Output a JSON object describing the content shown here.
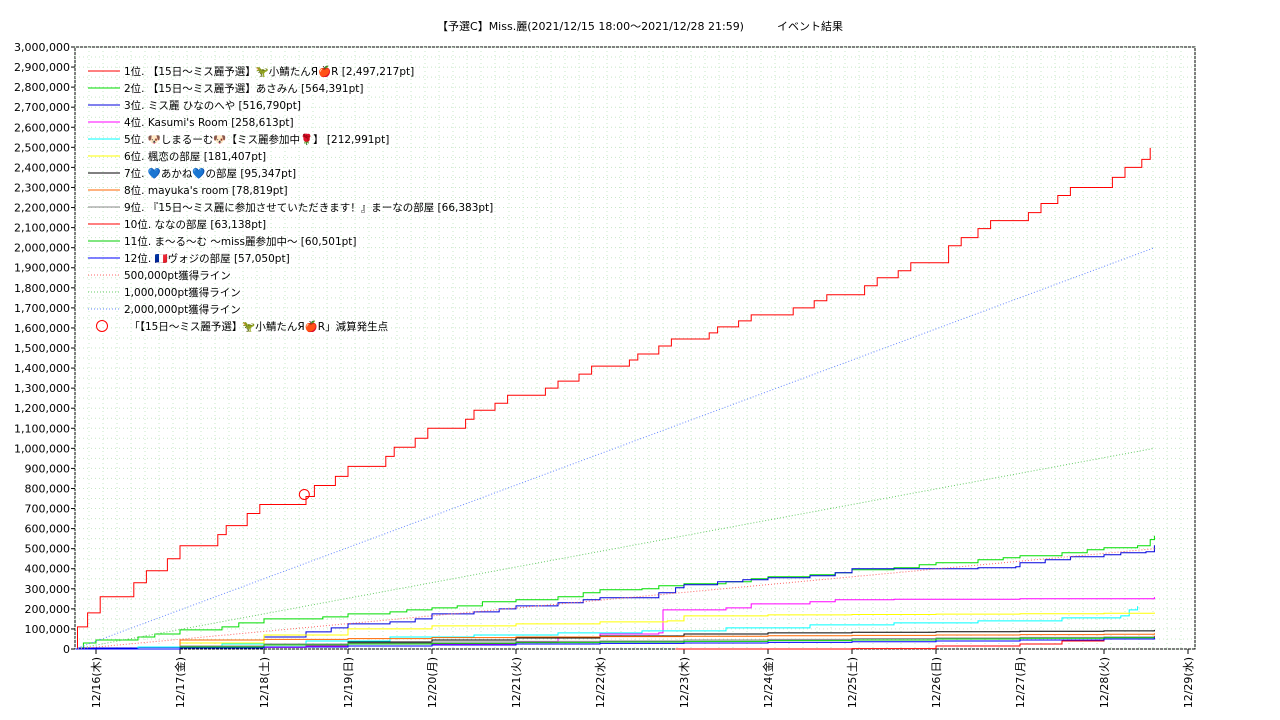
{
  "chart_data": {
    "type": "line",
    "title": "【予選C】Miss.麗(2021/12/15 18:00～2021/12/28 21:59)　　　イベント結果",
    "xlabel": "",
    "ylabel": "",
    "xlim": [
      0,
      13
    ],
    "ylim": [
      0,
      3000000
    ],
    "grid": true,
    "legend_position": "top-left",
    "y_ticks": [
      "0",
      "100,000",
      "200,000",
      "300,000",
      "400,000",
      "500,000",
      "600,000",
      "700,000",
      "800,000",
      "900,000",
      "1,000,000",
      "1,100,000",
      "1,200,000",
      "1,300,000",
      "1,400,000",
      "1,500,000",
      "1,600,000",
      "1,700,000",
      "1,800,000",
      "1,900,000",
      "2,000,000",
      "2,100,000",
      "2,200,000",
      "2,300,000",
      "2,400,000",
      "2,500,000",
      "2,600,000",
      "2,700,000",
      "2,800,000",
      "2,900,000",
      "3,000,000"
    ],
    "x_ticks": [
      "12/16(木)",
      "12/17(金)",
      "12/18(土)",
      "12/19(日)",
      "12/20(月)",
      "12/21(火)",
      "12/22(水)",
      "12/23(木)",
      "12/24(金)",
      "12/25(土)",
      "12/26(日)",
      "12/27(月)",
      "12/28(火)",
      "12/29(水)"
    ],
    "series": [
      {
        "name": "1位. 【15日～ミス麗予選】🦖小鯖たんЯ🍎R [2,497,217pt]",
        "color": "#ff0000",
        "style": "solid",
        "points": [
          [
            -0.25,
            0
          ],
          [
            -0.22,
            110000
          ],
          [
            -0.1,
            180000
          ],
          [
            0.05,
            260000
          ],
          [
            0.45,
            330000
          ],
          [
            0.6,
            390000
          ],
          [
            0.85,
            450000
          ],
          [
            1.0,
            515000
          ],
          [
            1.45,
            570000
          ],
          [
            1.55,
            615000
          ],
          [
            1.8,
            675000
          ],
          [
            1.95,
            720000
          ],
          [
            2.45,
            720000
          ],
          [
            2.5,
            760000
          ],
          [
            2.6,
            815000
          ],
          [
            2.85,
            860000
          ],
          [
            3.0,
            910000
          ],
          [
            3.45,
            960000
          ],
          [
            3.55,
            1005000
          ],
          [
            3.8,
            1050000
          ],
          [
            3.95,
            1100000
          ],
          [
            4.4,
            1145000
          ],
          [
            4.5,
            1190000
          ],
          [
            4.75,
            1225000
          ],
          [
            4.9,
            1265000
          ],
          [
            5.35,
            1300000
          ],
          [
            5.5,
            1335000
          ],
          [
            5.75,
            1370000
          ],
          [
            5.9,
            1410000
          ],
          [
            6.35,
            1440000
          ],
          [
            6.45,
            1470000
          ],
          [
            6.7,
            1510000
          ],
          [
            6.85,
            1545000
          ],
          [
            7.3,
            1575000
          ],
          [
            7.4,
            1605000
          ],
          [
            7.65,
            1635000
          ],
          [
            7.8,
            1665000
          ],
          [
            8.3,
            1700000
          ],
          [
            8.55,
            1735000
          ],
          [
            8.7,
            1765000
          ],
          [
            9.15,
            1810000
          ],
          [
            9.3,
            1850000
          ],
          [
            9.55,
            1885000
          ],
          [
            9.7,
            1925000
          ],
          [
            10.15,
            2010000
          ],
          [
            10.3,
            2050000
          ],
          [
            10.5,
            2095000
          ],
          [
            10.65,
            2135000
          ],
          [
            11.1,
            2175000
          ],
          [
            11.25,
            2220000
          ],
          [
            11.45,
            2260000
          ],
          [
            11.6,
            2300000
          ],
          [
            12.1,
            2350000
          ],
          [
            12.25,
            2400000
          ],
          [
            12.45,
            2440000
          ],
          [
            12.55,
            2497217
          ]
        ]
      },
      {
        "name": "2位. 【15日～ミス麗予選】あさみん [564,391pt]",
        "color": "#00dd00",
        "style": "solid",
        "points": [
          [
            -0.25,
            0
          ],
          [
            -0.15,
            30000
          ],
          [
            0.0,
            45000
          ],
          [
            0.5,
            60000
          ],
          [
            0.7,
            75000
          ],
          [
            1.0,
            95000
          ],
          [
            1.5,
            110000
          ],
          [
            1.7,
            130000
          ],
          [
            2.0,
            150000
          ],
          [
            2.6,
            150000
          ],
          [
            2.7,
            160000
          ],
          [
            3.0,
            175000
          ],
          [
            3.5,
            185000
          ],
          [
            3.7,
            195000
          ],
          [
            4.0,
            205000
          ],
          [
            4.3,
            215000
          ],
          [
            4.6,
            235000
          ],
          [
            5.0,
            245000
          ],
          [
            5.5,
            260000
          ],
          [
            5.8,
            280000
          ],
          [
            6.0,
            295000
          ],
          [
            6.5,
            300000
          ],
          [
            6.7,
            315000
          ],
          [
            7.0,
            325000
          ],
          [
            7.5,
            335000
          ],
          [
            7.8,
            350000
          ],
          [
            8.0,
            360000
          ],
          [
            8.5,
            370000
          ],
          [
            8.8,
            380000
          ],
          [
            9.0,
            395000
          ],
          [
            9.5,
            405000
          ],
          [
            9.8,
            420000
          ],
          [
            10.0,
            430000
          ],
          [
            10.5,
            445000
          ],
          [
            10.8,
            455000
          ],
          [
            11.0,
            465000
          ],
          [
            11.5,
            480000
          ],
          [
            11.8,
            495000
          ],
          [
            12.0,
            505000
          ],
          [
            12.4,
            515000
          ],
          [
            12.55,
            545000
          ],
          [
            12.6,
            564391
          ]
        ]
      },
      {
        "name": "3位. ミス麗 ひなのへや [516,790pt]",
        "color": "#0000dd",
        "style": "solid",
        "points": [
          [
            -0.25,
            0
          ],
          [
            -0.2,
            5000
          ],
          [
            0.5,
            8000
          ],
          [
            1.0,
            15000
          ],
          [
            1.5,
            30000
          ],
          [
            2.0,
            60000
          ],
          [
            2.5,
            85000
          ],
          [
            2.8,
            105000
          ],
          [
            3.0,
            125000
          ],
          [
            3.5,
            135000
          ],
          [
            3.8,
            150000
          ],
          [
            4.0,
            175000
          ],
          [
            4.5,
            185000
          ],
          [
            4.8,
            200000
          ],
          [
            5.0,
            215000
          ],
          [
            5.5,
            230000
          ],
          [
            5.8,
            245000
          ],
          [
            6.0,
            255000
          ],
          [
            6.65,
            255000
          ],
          [
            6.7,
            280000
          ],
          [
            6.9,
            305000
          ],
          [
            7.0,
            320000
          ],
          [
            7.4,
            335000
          ],
          [
            7.7,
            345000
          ],
          [
            8.0,
            355000
          ],
          [
            8.5,
            365000
          ],
          [
            8.8,
            380000
          ],
          [
            9.0,
            400000
          ],
          [
            10.0,
            400000
          ],
          [
            10.5,
            405000
          ],
          [
            10.95,
            410000
          ],
          [
            11.0,
            430000
          ],
          [
            11.3,
            445000
          ],
          [
            11.6,
            460000
          ],
          [
            12.0,
            470000
          ],
          [
            12.2,
            480000
          ],
          [
            12.5,
            485000
          ],
          [
            12.6,
            516790
          ]
        ]
      },
      {
        "name": "4位. Kasumi's Room [258,613pt]",
        "color": "#ff00ff",
        "style": "solid",
        "points": [
          [
            -0.25,
            0
          ],
          [
            1.0,
            8000
          ],
          [
            2.5,
            15000
          ],
          [
            4.0,
            25000
          ],
          [
            5.0,
            35000
          ],
          [
            5.5,
            55000
          ],
          [
            6.0,
            75000
          ],
          [
            6.7,
            80000
          ],
          [
            6.75,
            195000
          ],
          [
            7.5,
            205000
          ],
          [
            7.8,
            225000
          ],
          [
            8.5,
            235000
          ],
          [
            8.8,
            245000
          ],
          [
            9.5,
            248000
          ],
          [
            11.0,
            250000
          ],
          [
            12.6,
            258613
          ]
        ]
      },
      {
        "name": "5位. 🐶しまるーむ🐶【ミス麗参加中🌹】 [212,991pt]",
        "color": "#00ffff",
        "style": "solid",
        "points": [
          [
            -0.25,
            0
          ],
          [
            0.5,
            10000
          ],
          [
            1.5,
            25000
          ],
          [
            2.5,
            40000
          ],
          [
            3.5,
            60000
          ],
          [
            4.5,
            70000
          ],
          [
            5.5,
            80000
          ],
          [
            6.5,
            90000
          ],
          [
            7.5,
            105000
          ],
          [
            8.5,
            120000
          ],
          [
            9.5,
            130000
          ],
          [
            10.5,
            140000
          ],
          [
            11.5,
            155000
          ],
          [
            12.2,
            165000
          ],
          [
            12.3,
            195000
          ],
          [
            12.4,
            212991
          ]
        ]
      },
      {
        "name": "6位. 楓恋の部屋 [181,407pt]",
        "color": "#ffff00",
        "style": "solid",
        "points": [
          [
            -0.25,
            0
          ],
          [
            1.0,
            30000
          ],
          [
            2.0,
            70000
          ],
          [
            3.0,
            100000
          ],
          [
            4.0,
            115000
          ],
          [
            5.0,
            125000
          ],
          [
            6.0,
            135000
          ],
          [
            6.8,
            140000
          ],
          [
            7.0,
            165000
          ],
          [
            8.0,
            170000
          ],
          [
            9.0,
            172000
          ],
          [
            10.0,
            174000
          ],
          [
            11.0,
            176000
          ],
          [
            12.0,
            178000
          ],
          [
            12.6,
            181407
          ]
        ]
      },
      {
        "name": "7位. 💙あかね💙の部屋 [95,347pt]",
        "color": "#000000",
        "style": "solid",
        "points": [
          [
            -0.25,
            0
          ],
          [
            1.0,
            10000
          ],
          [
            2.0,
            20000
          ],
          [
            3.0,
            35000
          ],
          [
            4.0,
            45000
          ],
          [
            5.0,
            55000
          ],
          [
            6.0,
            65000
          ],
          [
            7.0,
            75000
          ],
          [
            8.0,
            80000
          ],
          [
            9.0,
            83000
          ],
          [
            10.0,
            86000
          ],
          [
            11.0,
            88000
          ],
          [
            12.0,
            90000
          ],
          [
            12.6,
            95347
          ]
        ]
      },
      {
        "name": "8位. mayuka's room [78,819pt]",
        "color": "#ff6600",
        "style": "solid",
        "points": [
          [
            -0.25,
            0
          ],
          [
            1.0,
            45000
          ],
          [
            2.0,
            48000
          ],
          [
            3.0,
            52000
          ],
          [
            4.0,
            57000
          ],
          [
            5.0,
            60000
          ],
          [
            6.0,
            62000
          ],
          [
            7.0,
            64000
          ],
          [
            8.0,
            66000
          ],
          [
            9.0,
            68000
          ],
          [
            10.0,
            70000
          ],
          [
            11.0,
            72000
          ],
          [
            12.0,
            74000
          ],
          [
            12.6,
            78819
          ]
        ]
      },
      {
        "name": "9位. 『15日～ミス麗に参加させていただきます！』まーなの部屋 [66,383pt]",
        "color": "#888888",
        "style": "solid",
        "points": [
          [
            -0.25,
            0
          ],
          [
            1.0,
            15000
          ],
          [
            2.0,
            25000
          ],
          [
            3.0,
            30000
          ],
          [
            4.0,
            35000
          ],
          [
            5.0,
            38000
          ],
          [
            6.0,
            40000
          ],
          [
            7.0,
            45000
          ],
          [
            8.0,
            48000
          ],
          [
            9.0,
            52000
          ],
          [
            10.0,
            55000
          ],
          [
            11.0,
            58000
          ],
          [
            12.0,
            60000
          ],
          [
            12.6,
            66383
          ]
        ]
      },
      {
        "name": "10位. ななの部屋 [63,138pt]",
        "color": "#ff0000",
        "style": "solid",
        "points": [
          [
            6.9,
            0
          ],
          [
            9.0,
            2000
          ],
          [
            10.0,
            15000
          ],
          [
            11.0,
            25000
          ],
          [
            11.5,
            40000
          ],
          [
            12.0,
            50000
          ],
          [
            12.6,
            63138
          ]
        ]
      },
      {
        "name": "11位. ま～る～む ～miss麗参加中～ [60,501pt]",
        "color": "#00cc00",
        "style": "solid",
        "points": [
          [
            -0.25,
            0
          ],
          [
            1.0,
            10000
          ],
          [
            2.0,
            20000
          ],
          [
            3.0,
            25000
          ],
          [
            4.0,
            28000
          ],
          [
            5.0,
            32000
          ],
          [
            6.0,
            35000
          ],
          [
            7.0,
            38000
          ],
          [
            8.0,
            42000
          ],
          [
            9.0,
            45000
          ],
          [
            10.0,
            50000
          ],
          [
            11.0,
            54000
          ],
          [
            12.0,
            56000
          ],
          [
            12.6,
            60501
          ]
        ]
      },
      {
        "name": "12位. 🇫🇷ヴォジの部屋 [57,050pt]",
        "color": "#0000ff",
        "style": "solid",
        "points": [
          [
            -0.25,
            0
          ],
          [
            1.0,
            5000
          ],
          [
            2.0,
            10000
          ],
          [
            3.0,
            15000
          ],
          [
            4.0,
            20000
          ],
          [
            5.0,
            25000
          ],
          [
            6.0,
            28000
          ],
          [
            7.0,
            30000
          ],
          [
            8.0,
            33000
          ],
          [
            9.0,
            36000
          ],
          [
            10.0,
            40000
          ],
          [
            11.0,
            45000
          ],
          [
            12.0,
            50000
          ],
          [
            12.6,
            57050
          ]
        ]
      },
      {
        "name": "500,000pt獲得ライン",
        "color": "#ff6666",
        "style": "dotted",
        "points": [
          [
            -0.25,
            0
          ],
          [
            12.6,
            500000
          ]
        ]
      },
      {
        "name": "1,000,000pt獲得ライン",
        "color": "#66cc66",
        "style": "dotted",
        "points": [
          [
            -0.25,
            0
          ],
          [
            12.6,
            1000000
          ]
        ]
      },
      {
        "name": "2,000,000pt獲得ライン",
        "color": "#6688ff",
        "style": "dotted",
        "points": [
          [
            -0.25,
            0
          ],
          [
            12.6,
            2000000
          ]
        ]
      }
    ],
    "annotations": [
      {
        "name": "「【15日～ミス麗予選】🦖小鯖たんЯ🍎R」減算発生点",
        "type": "circle",
        "color": "#ff0000",
        "x": 2.48,
        "y": 770000
      }
    ]
  }
}
